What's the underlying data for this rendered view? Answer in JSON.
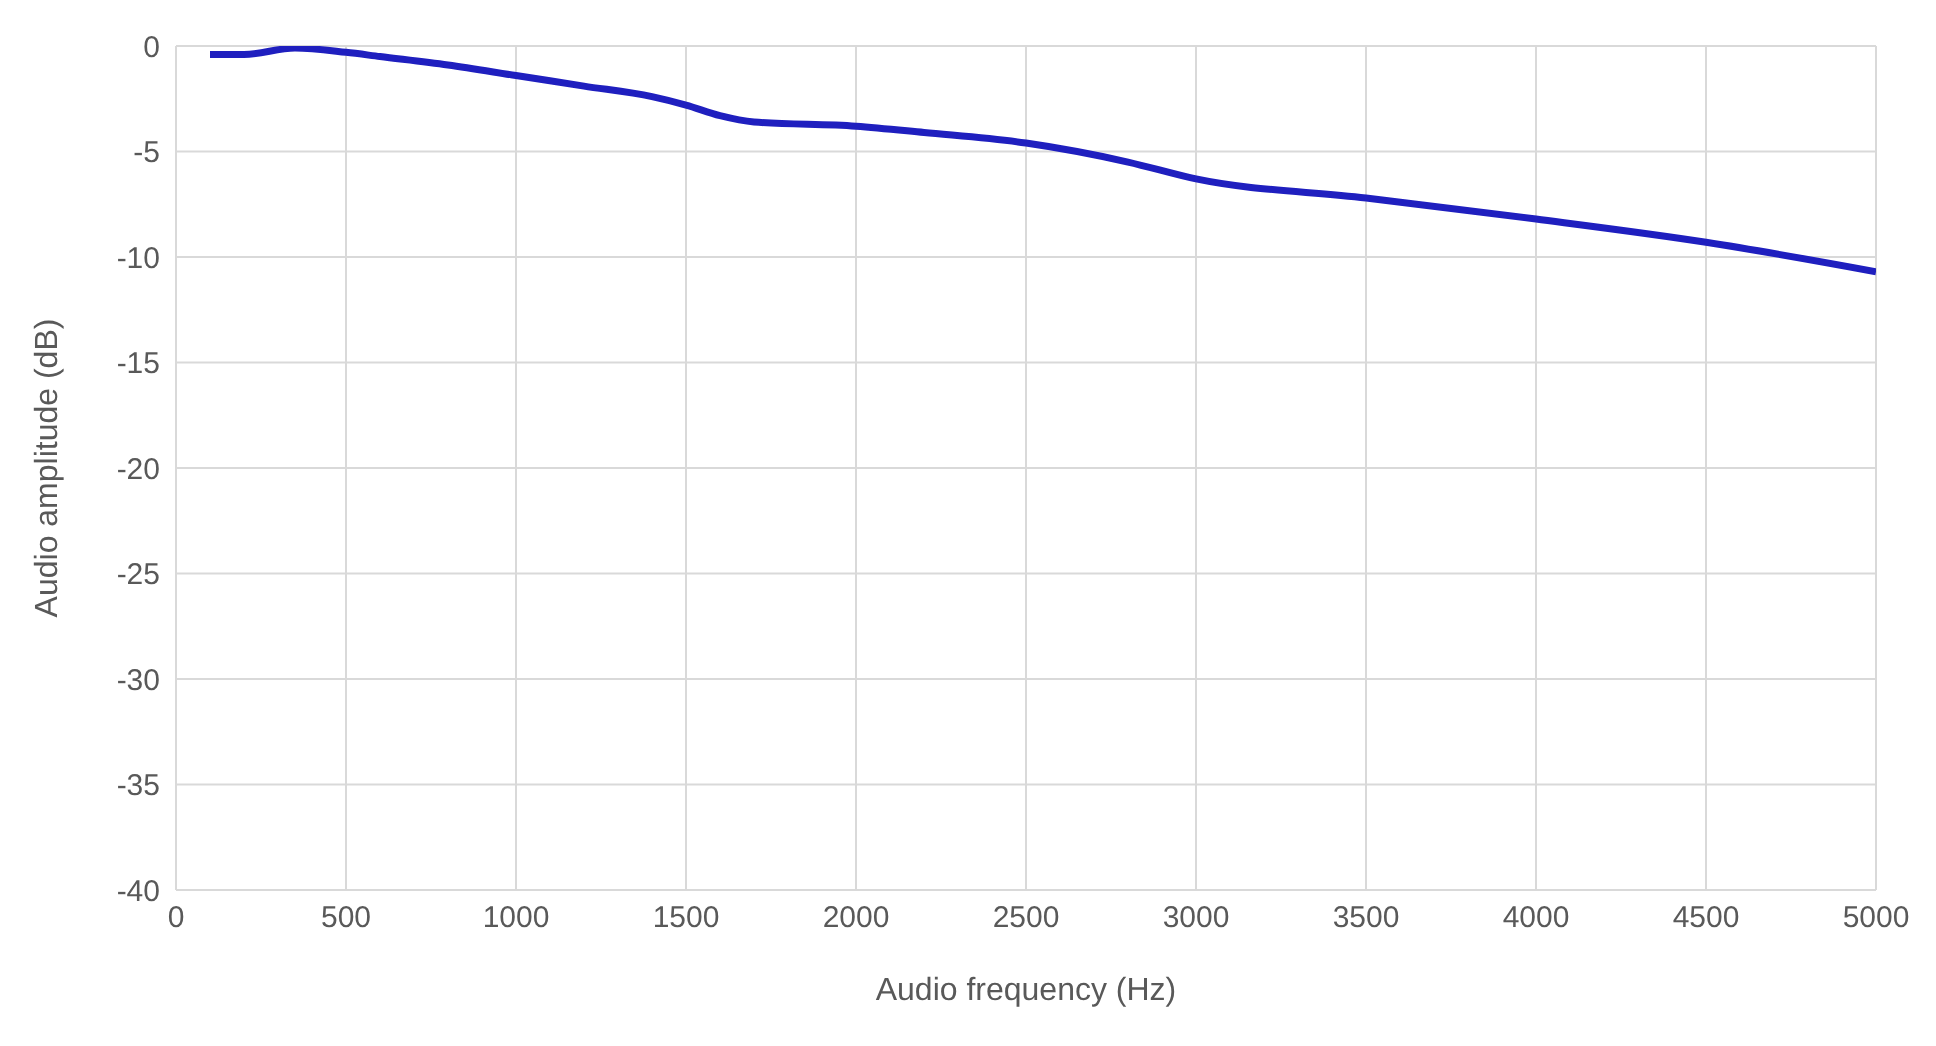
{
  "chart_data": {
    "type": "line",
    "xlabel": "Audio frequency (Hz)",
    "ylabel": "Audio amplitude (dB)",
    "x": [
      100,
      200,
      350,
      500,
      600,
      800,
      1000,
      1200,
      1400,
      1500,
      1600,
      1700,
      2000,
      2200,
      2500,
      2800,
      3000,
      3500,
      4000,
      4500,
      5000
    ],
    "series": [
      {
        "color": "#1f1fbf",
        "values": [
          -0.4,
          -0.4,
          -0.1,
          -0.3,
          -0.5,
          -0.9,
          -1.4,
          -1.9,
          -2.4,
          -2.8,
          -3.3,
          -3.6,
          -3.8,
          -4.1,
          -4.6,
          -5.5,
          -6.3,
          -7.2,
          -8.2,
          -9.3,
          -10.7
        ]
      }
    ],
    "xlim": [
      0,
      5000
    ],
    "xticks": [
      0,
      500,
      1000,
      1500,
      2000,
      2500,
      3000,
      3500,
      4000,
      4500,
      5000
    ],
    "ylim": [
      -40,
      0
    ],
    "yticks": [
      -40,
      -35,
      -30,
      -25,
      -20,
      -15,
      -10,
      -5,
      0
    ],
    "grid": true,
    "marker": "none",
    "line_style": "solid",
    "legend": false
  }
}
